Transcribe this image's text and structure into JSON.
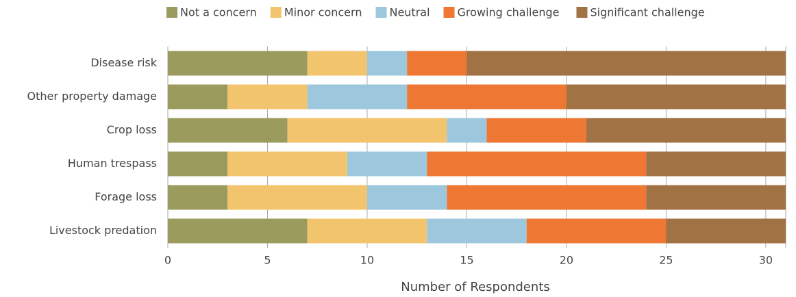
{
  "chart_data": {
    "type": "stacked-barh",
    "categories": [
      "Disease risk",
      "Other property damage",
      "Crop loss",
      "Human trespass",
      "Forage loss",
      "Livestock predation"
    ],
    "series": [
      {
        "name": "Not a concern",
        "color": "#9c9b5e",
        "values": [
          7,
          3,
          6,
          3,
          3,
          7
        ]
      },
      {
        "name": "Minor concern",
        "color": "#f3c46e",
        "values": [
          3,
          4,
          8,
          6,
          7,
          6
        ]
      },
      {
        "name": "Neutral",
        "color": "#9dc7dc",
        "values": [
          2,
          5,
          2,
          4,
          4,
          5
        ]
      },
      {
        "name": "Growing challenge",
        "color": "#ee7733",
        "values": [
          3,
          8,
          5,
          11,
          10,
          7
        ]
      },
      {
        "name": "Significant challenge",
        "color": "#a07244",
        "values": [
          16,
          11,
          10,
          7,
          7,
          6
        ]
      }
    ],
    "xlabel": "Number of Respondents",
    "xlim": [
      0,
      31
    ],
    "xticks": [
      0,
      5,
      10,
      15,
      20,
      25,
      30
    ],
    "grid": true,
    "legend": "top"
  }
}
